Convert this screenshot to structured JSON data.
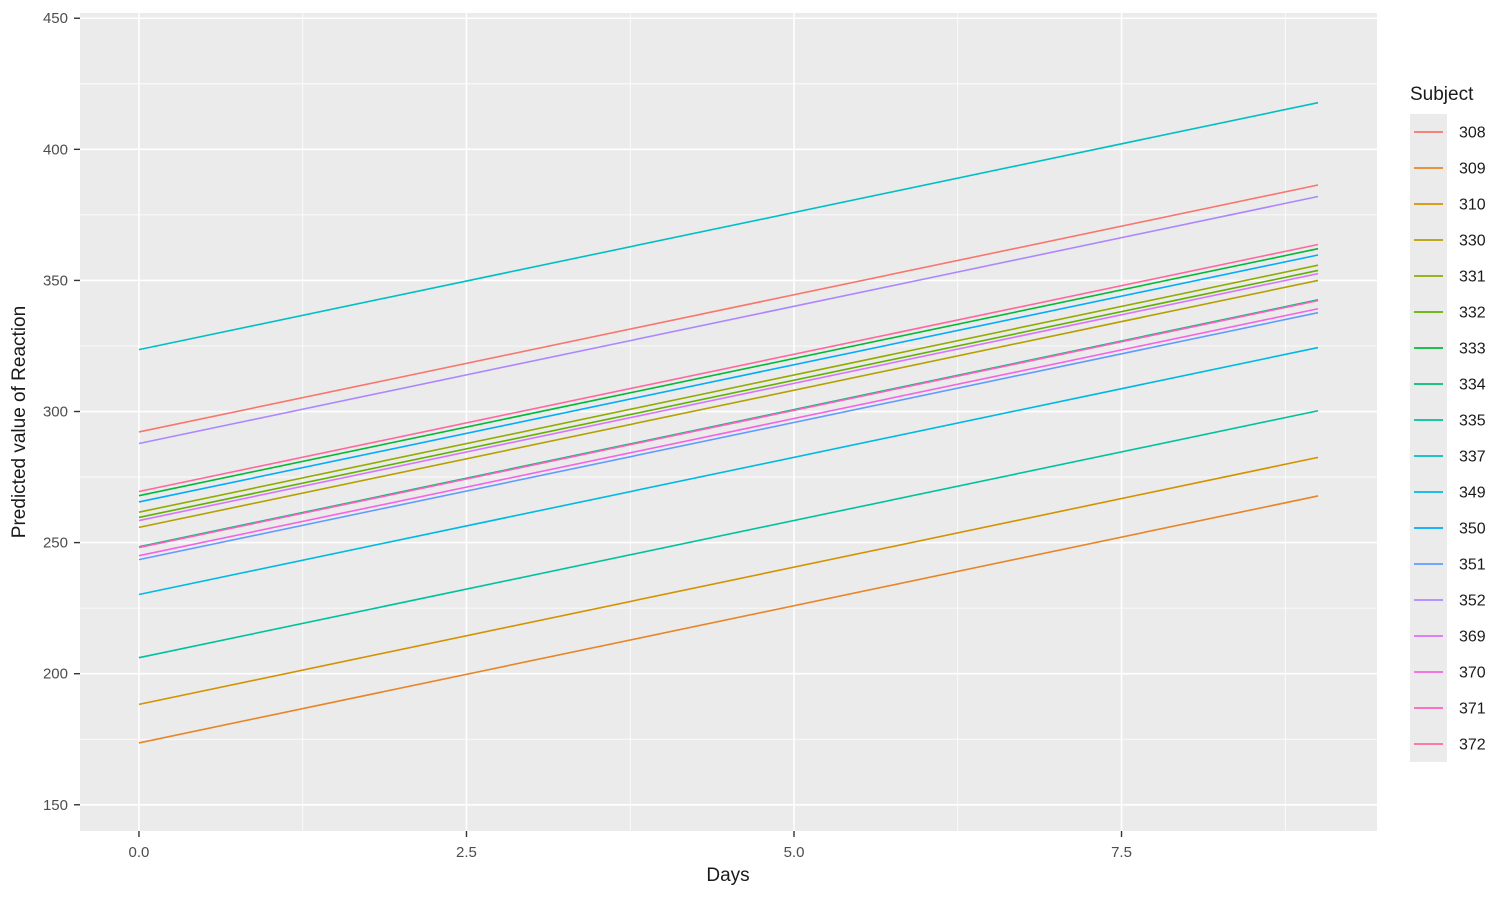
{
  "chart_data": {
    "type": "line",
    "title": "",
    "xlabel": "Days",
    "ylabel": "Predicted value of Reaction",
    "legend_title": "Subject",
    "legend_position": "right",
    "grid": true,
    "panel_bg": "#EBEBEB",
    "grid_color": "#FFFFFF",
    "tick_color": "#333333",
    "tick_label_color": "#4D4D4D",
    "x_range": [
      -0.45,
      9.45
    ],
    "y_range": [
      140,
      452
    ],
    "x": [
      0,
      9
    ],
    "x_ticks": [
      0.0,
      2.5,
      5.0,
      7.5
    ],
    "x_tick_labels": [
      "0.0",
      "2.5",
      "5.0",
      "7.5"
    ],
    "x_minor_ticks": [
      1.25,
      3.75,
      6.25,
      8.75
    ],
    "y_ticks": [
      150,
      200,
      250,
      300,
      350,
      400,
      450
    ],
    "y_tick_labels": [
      "150",
      "200",
      "250",
      "300",
      "350",
      "400",
      "450"
    ],
    "y_minor_ticks": [
      175,
      225,
      275,
      325,
      375,
      425
    ],
    "series": [
      {
        "name": "308",
        "color": "#F8766D",
        "values": [
          292.2,
          386.4
        ]
      },
      {
        "name": "309",
        "color": "#E88526",
        "values": [
          173.6,
          267.8
        ]
      },
      {
        "name": "310",
        "color": "#D39200",
        "values": [
          188.3,
          282.5
        ]
      },
      {
        "name": "330",
        "color": "#B79F00",
        "values": [
          255.8,
          350.0
        ]
      },
      {
        "name": "331",
        "color": "#93AA00",
        "values": [
          261.6,
          355.8
        ]
      },
      {
        "name": "332",
        "color": "#5EB300",
        "values": [
          259.6,
          353.8
        ]
      },
      {
        "name": "333",
        "color": "#00BA38",
        "values": [
          267.9,
          362.1
        ]
      },
      {
        "name": "334",
        "color": "#00BF74",
        "values": [
          248.4,
          342.6
        ]
      },
      {
        "name": "335",
        "color": "#00C19F",
        "values": [
          206.1,
          300.3
        ]
      },
      {
        "name": "337",
        "color": "#00BFC4",
        "values": [
          323.6,
          417.8
        ]
      },
      {
        "name": "349",
        "color": "#00B9E3",
        "values": [
          230.2,
          324.4
        ]
      },
      {
        "name": "350",
        "color": "#00ADFA",
        "values": [
          265.5,
          359.7
        ]
      },
      {
        "name": "351",
        "color": "#619CFF",
        "values": [
          243.5,
          337.7
        ]
      },
      {
        "name": "352",
        "color": "#AE87FF",
        "values": [
          287.8,
          382.0
        ]
      },
      {
        "name": "369",
        "color": "#DB72FB",
        "values": [
          258.4,
          352.6
        ]
      },
      {
        "name": "370",
        "color": "#F564E3",
        "values": [
          245.0,
          339.2
        ]
      },
      {
        "name": "371",
        "color": "#FF61C3",
        "values": [
          248.1,
          342.3
        ]
      },
      {
        "name": "372",
        "color": "#FF689E",
        "values": [
          269.5,
          363.7
        ]
      }
    ]
  }
}
